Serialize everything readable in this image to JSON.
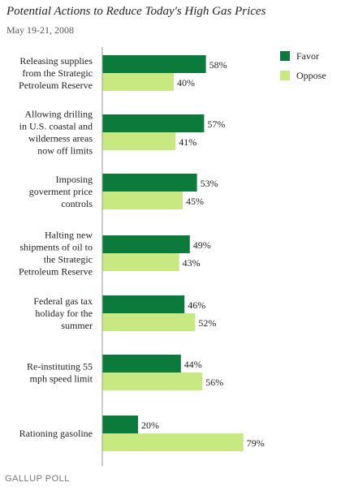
{
  "title": "Potential Actions to Reduce Today's High Gas Prices",
  "subtitle": "May 19-21, 2008",
  "footer": "GALLUP POLL",
  "colors": {
    "favor": "#0c7a3a",
    "oppose": "#c8e882",
    "axis": "#999999"
  },
  "chart_data": {
    "type": "bar",
    "orientation": "horizontal",
    "categories": [
      [
        "Releasing supplies",
        "from the Strategic",
        "Petroleum Reserve"
      ],
      [
        "Allowing drilling",
        "in U.S. coastal and",
        "wilderness areas",
        "now off limits"
      ],
      [
        "Imposing",
        "goverment price",
        "controls"
      ],
      [
        "Halting new",
        "shipments of oil to",
        "the Strategic",
        "Petroleum Reserve"
      ],
      [
        "Federal gas tax",
        "holiday for the",
        "summer"
      ],
      [
        "Re-instituting 55",
        "mph speed limit"
      ],
      [
        "Rationing gasoline"
      ]
    ],
    "series": [
      {
        "name": "Favor",
        "values": [
          58,
          57,
          53,
          49,
          46,
          44,
          20
        ]
      },
      {
        "name": "Oppose",
        "values": [
          40,
          41,
          45,
          43,
          52,
          56,
          79
        ]
      }
    ],
    "value_suffix": "%",
    "xlim": [
      0,
      100
    ],
    "legend": "top-right",
    "grid": false
  }
}
